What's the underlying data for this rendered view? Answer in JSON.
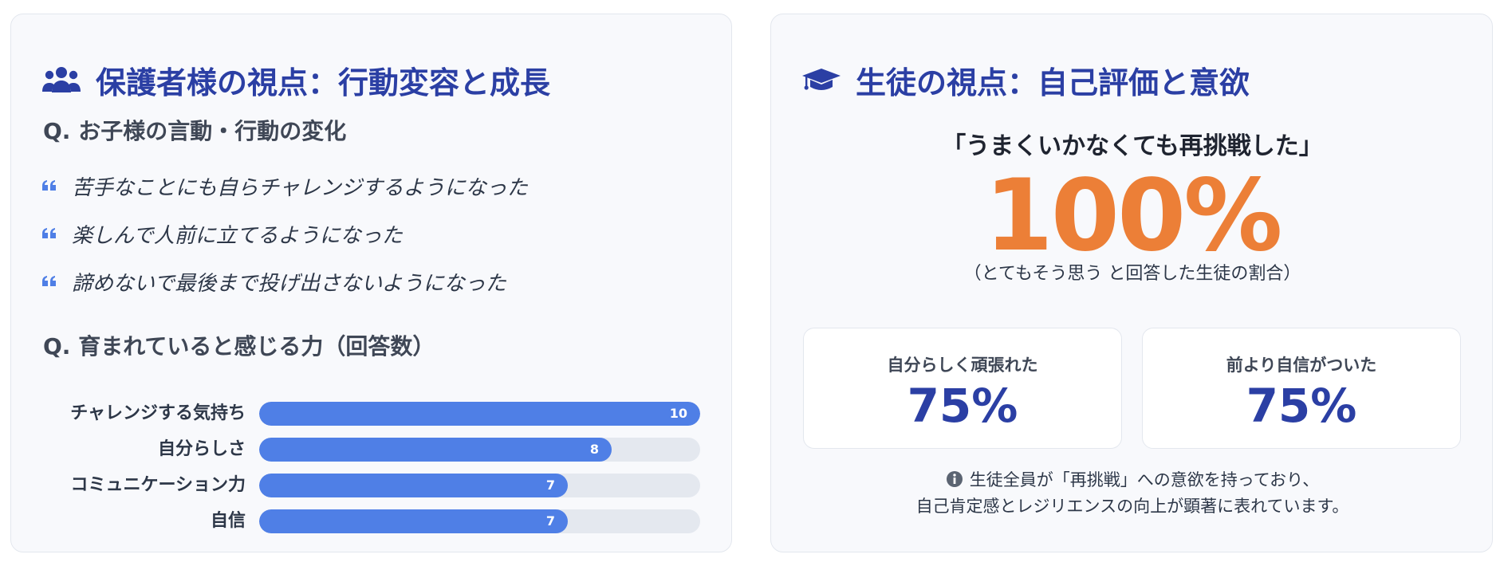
{
  "colors": {
    "title": "#2b3fa4",
    "bar": "#4f7fe6",
    "bar_track": "#e4e8ef",
    "highlight": "#ec7f37",
    "stat": "#2b3fa4"
  },
  "left": {
    "title": "保護者様の視点：行動変容と成長",
    "title_icon": "users-icon",
    "q1": "Q. お子様の言動・行動の変化",
    "quote_icon": "quote-icon",
    "quotes": [
      "苦手なことにも自らチャレンジするようになった",
      "楽しんで人前に立てるようになった",
      "諦めないで最後まで投げ出さないようになった"
    ],
    "q2": "Q. 育まれていると感じる力（回答数）"
  },
  "chart_data": {
    "type": "bar",
    "orientation": "horizontal",
    "categories": [
      "チャレンジする気持ち",
      "自分らしさ",
      "コミュニケーション力",
      "自信"
    ],
    "values": [
      10,
      8,
      7,
      7
    ],
    "xlim": [
      0,
      10
    ],
    "data_labels": [
      "10",
      "8",
      "7",
      "7"
    ]
  },
  "right": {
    "title": "生徒の視点：自己評価と意欲",
    "title_icon": "graduation-cap-icon",
    "headline": "「うまくいかなくても再挑戦した」",
    "big_percent": "100%",
    "big_sub": "（とてもそう思う と回答した生徒の割合）",
    "stats": [
      {
        "label": "自分らしく頑張れた",
        "value": "75%"
      },
      {
        "label": "前より自信がついた",
        "value": "75%"
      }
    ],
    "note_icon": "info-icon",
    "note_line1": "生徒全員が「再挑戦」への意欲を持っており、",
    "note_line2": "自己肯定感とレジリエンスの向上が顕著に表れています。"
  }
}
